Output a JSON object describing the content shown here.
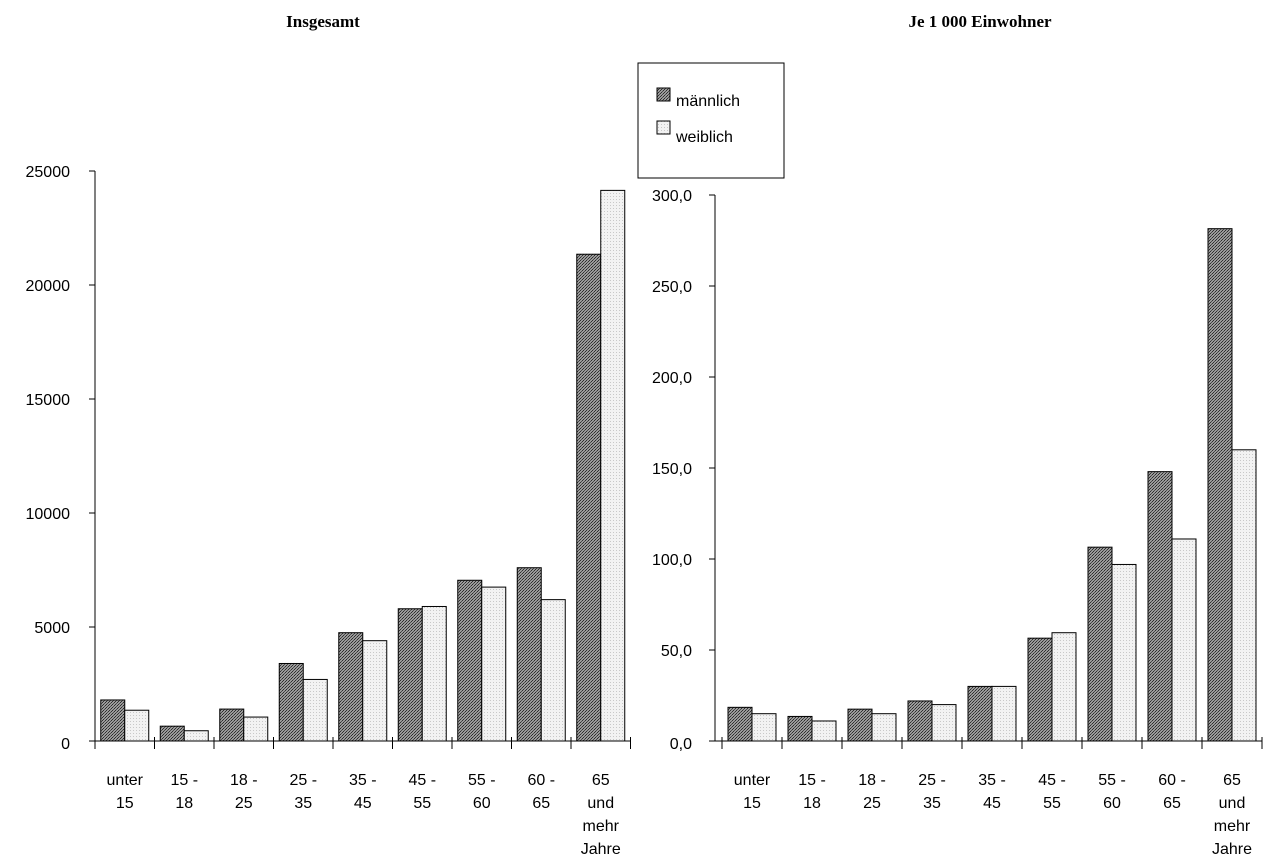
{
  "legend": {
    "items": [
      {
        "label": "männlich",
        "pattern": "dark"
      },
      {
        "label": "weiblich",
        "pattern": "light"
      }
    ]
  },
  "chart_data": [
    {
      "type": "bar",
      "title": "Insgesamt",
      "categories": [
        [
          "unter",
          "15"
        ],
        [
          "15 -",
          "18"
        ],
        [
          "18 -",
          "25"
        ],
        [
          "25 -",
          "35"
        ],
        [
          "35 -",
          "45"
        ],
        [
          "45 -",
          "55"
        ],
        [
          "55 -",
          "60"
        ],
        [
          "60 -",
          "65"
        ],
        [
          "65",
          "und",
          "mehr",
          "Jahre"
        ]
      ],
      "ylim": [
        0,
        25000
      ],
      "yticks": [
        "0",
        "5000",
        "10000",
        "15000",
        "20000",
        "25000"
      ],
      "series": [
        {
          "name": "männlich",
          "values": [
            1800,
            650,
            1400,
            3400,
            4750,
            5800,
            7050,
            7600,
            21350
          ]
        },
        {
          "name": "weiblich",
          "values": [
            1350,
            450,
            1050,
            2700,
            4400,
            5900,
            6750,
            6200,
            24150
          ]
        }
      ]
    },
    {
      "type": "bar",
      "title": "Je 1 000 Einwohner",
      "categories": [
        [
          "unter",
          "15"
        ],
        [
          "15 -",
          "18"
        ],
        [
          "18 -",
          "25"
        ],
        [
          "25 -",
          "35"
        ],
        [
          "35 -",
          "45"
        ],
        [
          "45 -",
          "55"
        ],
        [
          "55 -",
          "60"
        ],
        [
          "60 -",
          "65"
        ],
        [
          "65",
          "und",
          "mehr",
          "Jahre"
        ]
      ],
      "ylim": [
        0,
        300
      ],
      "yticks": [
        "0,0",
        "50,0",
        "100,0",
        "150,0",
        "200,0",
        "250,0",
        "300,0"
      ],
      "series": [
        {
          "name": "männlich",
          "values": [
            18.5,
            13.5,
            17.5,
            22.0,
            30.0,
            56.5,
            106.5,
            148.0,
            281.5
          ]
        },
        {
          "name": "weiblich",
          "values": [
            15.0,
            11.0,
            15.0,
            20.0,
            30.0,
            59.5,
            97.0,
            111.0,
            160.0
          ]
        }
      ]
    }
  ]
}
